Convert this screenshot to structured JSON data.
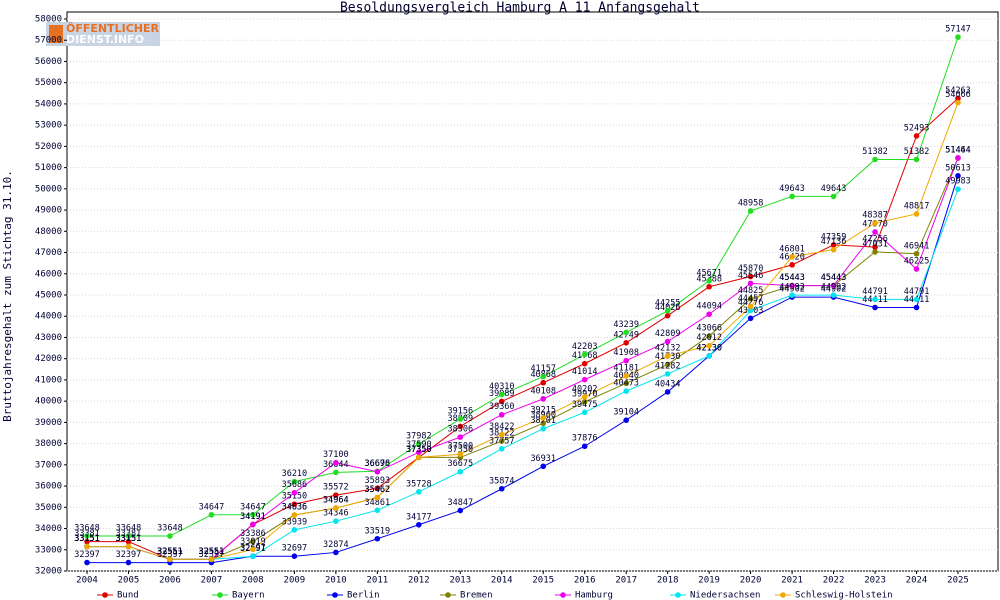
{
  "logo": {
    "line1": "ÖFFENTLICHER",
    "line2": "DIENST.INFO"
  },
  "chart_data": {
    "type": "line",
    "title": "Besoldungsvergleich Hamburg A 11 Anfangsgehalt",
    "y_label": "Bruttojahresgehalt zum Stichtag 31.10.",
    "categories": [
      "2004",
      "2005",
      "2006",
      "2007",
      "2008",
      "2009",
      "2010",
      "2011",
      "2012",
      "2013",
      "2014",
      "2015",
      "2016",
      "2017",
      "2018",
      "2019",
      "2020",
      "2021",
      "2022",
      "2023",
      "2024",
      "2025"
    ],
    "ylim": [
      32000,
      58000
    ],
    "yticks": [
      32000,
      33000,
      34000,
      35000,
      36000,
      37000,
      38000,
      39000,
      40000,
      41000,
      42000,
      43000,
      44000,
      45000,
      46000,
      47000,
      48000,
      49000,
      50000,
      51000,
      52000,
      53000,
      54000,
      55000,
      56000,
      57000,
      58000
    ],
    "grid": true,
    "legend": "bottom",
    "series": [
      {
        "name": "Bund",
        "color": "#e00000",
        "values": [
          33381,
          33381,
          32551,
          32551,
          34191,
          35150,
          35572,
          35893,
          37350,
          38809,
          39989,
          40868,
          41768,
          42749,
          44026,
          45388,
          45870,
          46420,
          47359,
          47256,
          52493,
          54263
        ]
      },
      {
        "name": "Bayern",
        "color": "#22dd22",
        "values": [
          33648,
          33648,
          33648,
          34647,
          34647,
          36210,
          36644,
          36698,
          37982,
          39156,
          40310,
          41157,
          42203,
          43239,
          44255,
          45671,
          48958,
          49643,
          49643,
          51382,
          51382,
          57147
        ]
      },
      {
        "name": "Berlin",
        "color": "#0000ee",
        "values": [
          32397,
          32397,
          32397,
          32397,
          32697,
          32697,
          32874,
          33519,
          34177,
          34847,
          35874,
          36931,
          37876,
          39104,
          40434,
          42130,
          43903,
          44902,
          44902,
          44411,
          44411,
          50613
        ]
      },
      {
        "name": "Bremen",
        "color": "#808000",
        "values": [
          33151,
          33151,
          32551,
          32551,
          33386,
          34636,
          34964,
          35462,
          37350,
          37350,
          38122,
          38960,
          39970,
          40840,
          41730,
          43066,
          44825,
          45443,
          45443,
          47031,
          46941,
          51444
        ]
      },
      {
        "name": "Hamburg",
        "color": "#ee00ee",
        "values": [
          33151,
          33151,
          32551,
          32551,
          34191,
          35686,
          37100,
          36676,
          37590,
          38306,
          39360,
          40108,
          41014,
          41908,
          42809,
          44094,
          45546,
          45443,
          45443,
          47970,
          46225,
          51464
        ]
      },
      {
        "name": "Niedersachsen",
        "color": "#00e5ee",
        "values": [
          33151,
          33151,
          32551,
          32551,
          32691,
          33939,
          34346,
          34861,
          35728,
          36675,
          37757,
          38701,
          39475,
          40473,
          41282,
          42130,
          44276,
          44992,
          44992,
          44791,
          44791,
          49983
        ]
      },
      {
        "name": "Schleswig-Holstein",
        "color": "#f0a800",
        "values": [
          33151,
          33151,
          32551,
          32551,
          33019,
          34636,
          34964,
          35462,
          37350,
          37500,
          38422,
          39215,
          40202,
          41181,
          42132,
          42612,
          44457,
          46801,
          47136,
          48387,
          48817,
          54066
        ]
      }
    ]
  }
}
